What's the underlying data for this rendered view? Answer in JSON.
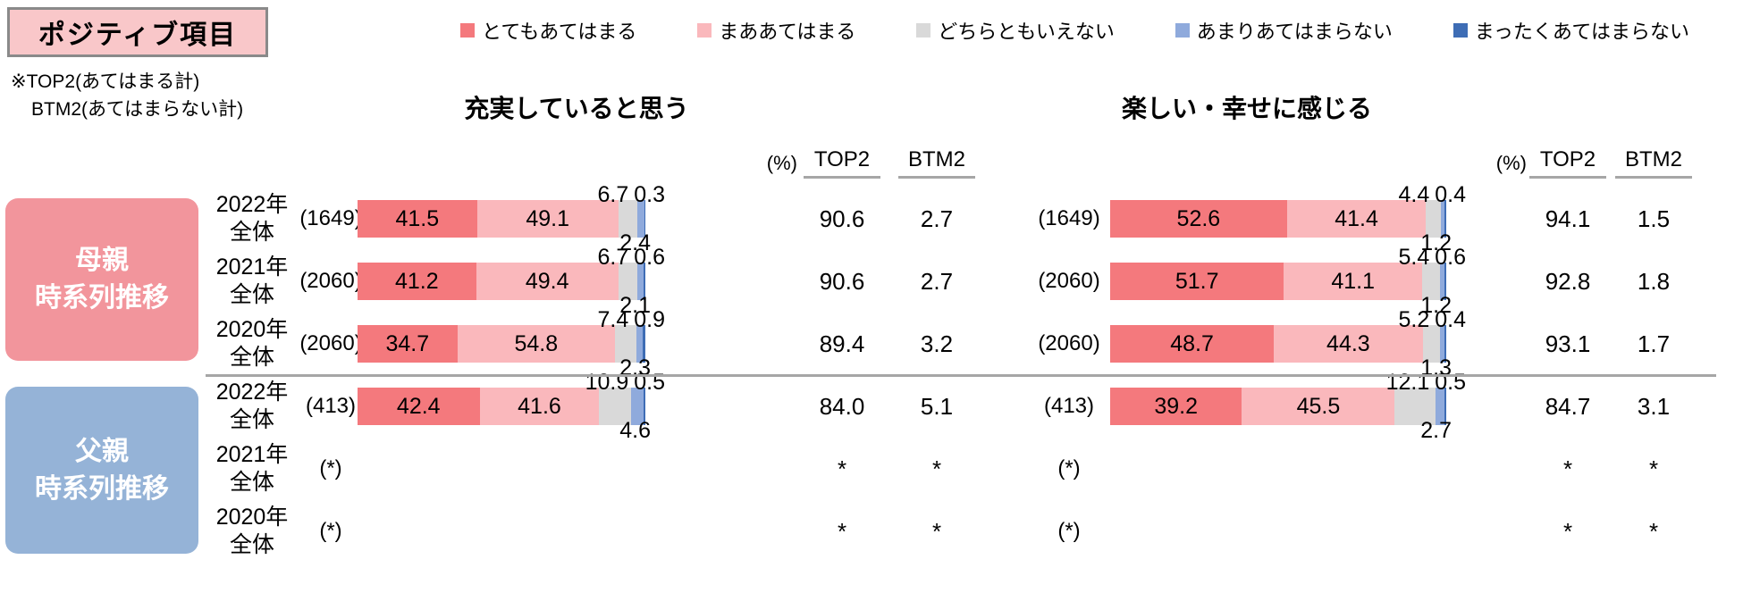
{
  "page_title": {
    "label": "ポジティブ項目"
  },
  "note": {
    "line1": "※TOP2(あてはまる計)",
    "line2": "BTM2(あてはまらない計)"
  },
  "legend": {
    "items": [
      {
        "label": "とてもあてはまる",
        "color": "#F4797D"
      },
      {
        "label": "まああてはまる",
        "color": "#FAB8BC"
      },
      {
        "label": "どちらともいえない",
        "color": "#D9D9D9"
      },
      {
        "label": "あまりあてはまらない",
        "color": "#8FAADC"
      },
      {
        "label": "まったくあてはまらない",
        "color": "#3E6DB5"
      }
    ]
  },
  "groups": [
    {
      "line1": "母親",
      "line2": "時系列推移",
      "color": "#F2959C"
    },
    {
      "line1": "父親",
      "line2": "時系列推移",
      "color": "#95B3D7"
    }
  ],
  "row_years": [
    {
      "year": "2022年",
      "scope": "全体"
    },
    {
      "year": "2021年",
      "scope": "全体"
    },
    {
      "year": "2020年",
      "scope": "全体"
    },
    {
      "year": "2022年",
      "scope": "全体"
    },
    {
      "year": "2021年",
      "scope": "全体"
    },
    {
      "year": "2020年",
      "scope": "全体"
    }
  ],
  "columns": {
    "percent": "(%)",
    "top2": "TOP2",
    "btm2": "BTM2"
  },
  "chart_data": [
    {
      "type": "bar",
      "subtype": "horizontal-stacked-100pct",
      "title": "充実していると思う",
      "unit": "%",
      "xlim": [
        0,
        100
      ],
      "legend_position": "top",
      "series_labels": [
        "とてもあてはまる",
        "まああてはまる",
        "どちらともいえない",
        "あまりあてはまらない",
        "まったくあてはまらない"
      ],
      "rows": [
        {
          "group": "母親時系列推移",
          "category": "2022年全体",
          "n": "(1649)",
          "values": [
            41.5,
            49.1,
            6.7,
            2.4,
            0.3
          ],
          "labels": [
            "41.5",
            "49.1",
            "6.7",
            "2.4",
            "0.3"
          ],
          "top2": "90.6",
          "btm2": "2.7"
        },
        {
          "group": "母親時系列推移",
          "category": "2021年全体",
          "n": "(2060)",
          "values": [
            41.2,
            49.4,
            6.7,
            2.1,
            0.6
          ],
          "labels": [
            "41.2",
            "49.4",
            "6.7",
            "2.1",
            "0.6"
          ],
          "top2": "90.6",
          "btm2": "2.7"
        },
        {
          "group": "母親時系列推移",
          "category": "2020年全体",
          "n": "(2060)",
          "values": [
            34.7,
            54.8,
            7.4,
            2.3,
            0.9
          ],
          "labels": [
            "34.7",
            "54.8",
            "7.4",
            "2.3",
            "0.9"
          ],
          "top2": "89.4",
          "btm2": "3.2"
        },
        {
          "group": "父親時系列推移",
          "category": "2022年全体",
          "n": "(413)",
          "values": [
            42.4,
            41.6,
            10.9,
            4.6,
            0.5
          ],
          "labels": [
            "42.4",
            "41.6",
            "10.9",
            "4.6",
            "0.5"
          ],
          "top2": "84.0",
          "btm2": "5.1"
        },
        {
          "group": "父親時系列推移",
          "category": "2021年全体",
          "n": "(*)",
          "values": null,
          "labels": null,
          "top2": "*",
          "btm2": "*"
        },
        {
          "group": "父親時系列推移",
          "category": "2020年全体",
          "n": "(*)",
          "values": null,
          "labels": null,
          "top2": "*",
          "btm2": "*"
        }
      ]
    },
    {
      "type": "bar",
      "subtype": "horizontal-stacked-100pct",
      "title": "楽しい・幸せに感じる",
      "unit": "%",
      "xlim": [
        0,
        100
      ],
      "legend_position": "top",
      "series_labels": [
        "とてもあてはまる",
        "まああてはまる",
        "どちらともいえない",
        "あまりあてはまらない",
        "まったくあてはまらない"
      ],
      "rows": [
        {
          "group": "母親時系列推移",
          "category": "2022年全体",
          "n": "(1649)",
          "values": [
            52.6,
            41.4,
            4.4,
            1.2,
            0.4
          ],
          "labels": [
            "52.6",
            "41.4",
            "4.4",
            "1.2",
            "0.4"
          ],
          "top2": "94.1",
          "btm2": "1.5"
        },
        {
          "group": "母親時系列推移",
          "category": "2021年全体",
          "n": "(2060)",
          "values": [
            51.7,
            41.1,
            5.4,
            1.2,
            0.6
          ],
          "labels": [
            "51.7",
            "41.1",
            "5.4",
            "1.2",
            "0.6"
          ],
          "top2": "92.8",
          "btm2": "1.8"
        },
        {
          "group": "母親時系列推移",
          "category": "2020年全体",
          "n": "(2060)",
          "values": [
            48.7,
            44.3,
            5.2,
            1.3,
            0.4
          ],
          "labels": [
            "48.7",
            "44.3",
            "5.2",
            "1.3",
            "0.4"
          ],
          "top2": "93.1",
          "btm2": "1.7"
        },
        {
          "group": "父親時系列推移",
          "category": "2022年全体",
          "n": "(413)",
          "values": [
            39.2,
            45.5,
            12.1,
            2.7,
            0.5
          ],
          "labels": [
            "39.2",
            "45.5",
            "12.1",
            "2.7",
            "0.5"
          ],
          "top2": "84.7",
          "btm2": "3.1"
        },
        {
          "group": "父親時系列推移",
          "category": "2021年全体",
          "n": "(*)",
          "values": null,
          "labels": null,
          "top2": "*",
          "btm2": "*"
        },
        {
          "group": "父親時系列推移",
          "category": "2020年全体",
          "n": "(*)",
          "values": null,
          "labels": null,
          "top2": "*",
          "btm2": "*"
        }
      ]
    }
  ]
}
